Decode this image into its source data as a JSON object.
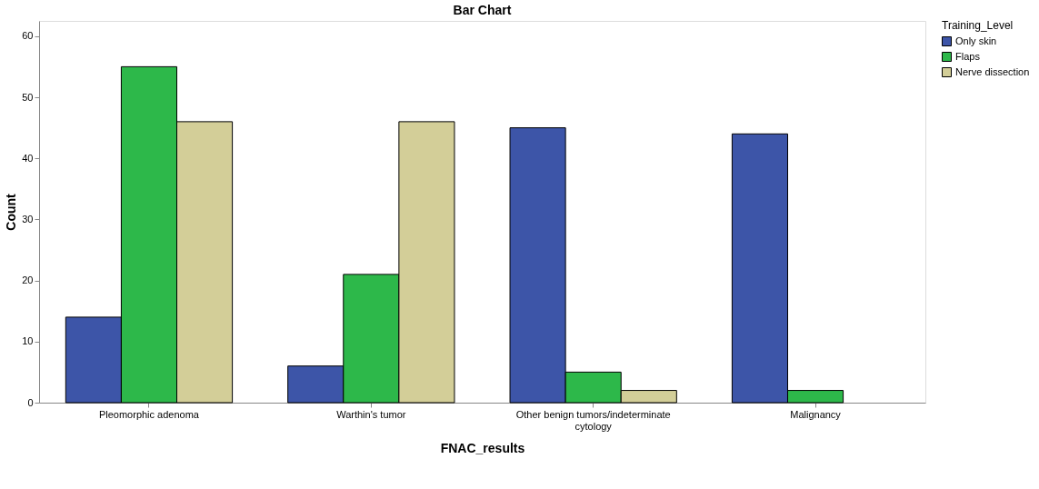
{
  "chart_data": {
    "type": "bar",
    "title": "Bar Chart",
    "xlabel": "FNAC_results",
    "ylabel": "Count",
    "legend_title": "Training_Level",
    "categories": [
      "Pleomorphic adenoma",
      "Warthin's tumor",
      "Other benign tumors/indeterminate cytology",
      "Malignancy"
    ],
    "series": [
      {
        "name": "Only skin",
        "color": "#3d55a8",
        "values": [
          14,
          6,
          45,
          44
        ]
      },
      {
        "name": "Flaps",
        "color": "#2db84a",
        "values": [
          55,
          21,
          5,
          2
        ]
      },
      {
        "name": "Nerve dissection",
        "color": "#d3ce98",
        "values": [
          46,
          46,
          2,
          null
        ]
      }
    ],
    "ylim": [
      0,
      62.5
    ],
    "yticks": [
      0,
      10,
      20,
      30,
      40,
      50,
      60
    ],
    "grid": false,
    "legend": "top right"
  }
}
